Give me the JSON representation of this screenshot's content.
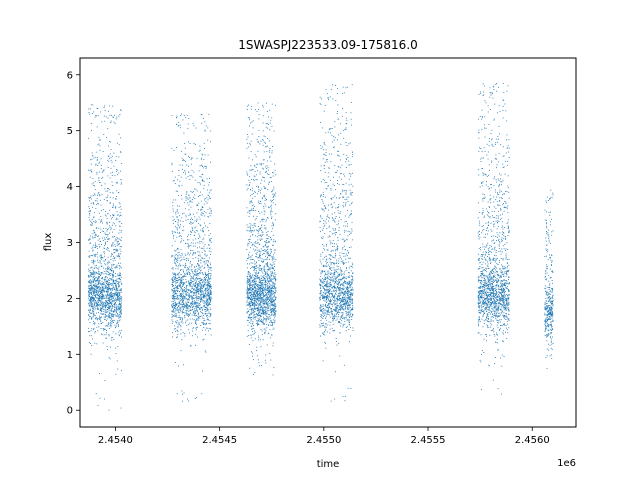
{
  "chart_data": {
    "type": "scatter",
    "title": "1SWASPJ223533.09-175816.0",
    "xlabel": "time",
    "ylabel": "flux",
    "x_offset_label": "1e6",
    "xlim": [
      2453830,
      2456210
    ],
    "ylim": [
      -0.3,
      6.3
    ],
    "x_ticks": [
      2453900,
      2454000,
      2454100,
      2454200,
      2454300,
      2454400,
      2454500
    ],
    "x_tick_labels": [
      "",
      "",
      "",
      "",
      "",
      "",
      ""
    ],
    "point_color": "#1f77b4",
    "grid": false,
    "legend": "none",
    "x_tick_values": [
      2454000,
      2454500,
      2455000,
      2455500,
      2456000
    ],
    "x_tick_texts": [
      "2.4540",
      "2.4545",
      "2.4550",
      "2.4555",
      "2.4560"
    ],
    "y_tick_values": [
      0,
      1,
      2,
      3,
      4,
      5,
      6
    ],
    "y_tick_texts": [
      "0",
      "1",
      "2",
      "3",
      "4",
      "5",
      "6"
    ],
    "clusters": [
      {
        "x_start": 2453870,
        "x_end": 2454030,
        "n": 1700,
        "median": 2.0,
        "max": 5.5,
        "min": 0.0
      },
      {
        "x_start": 2454270,
        "x_end": 2454460,
        "n": 1700,
        "median": 2.0,
        "max": 5.3,
        "min": 0.1
      },
      {
        "x_start": 2454630,
        "x_end": 2454770,
        "n": 1700,
        "median": 2.0,
        "max": 5.5,
        "min": 0.6
      },
      {
        "x_start": 2454980,
        "x_end": 2455140,
        "n": 1400,
        "median": 2.0,
        "max": 5.85,
        "min": 0.15
      },
      {
        "x_start": 2455740,
        "x_end": 2455890,
        "n": 1500,
        "median": 2.0,
        "max": 5.85,
        "min": 0.25
      },
      {
        "x_start": 2456060,
        "x_end": 2456100,
        "n": 350,
        "median": 1.7,
        "max": 4.0,
        "min": 0.5
      }
    ]
  }
}
